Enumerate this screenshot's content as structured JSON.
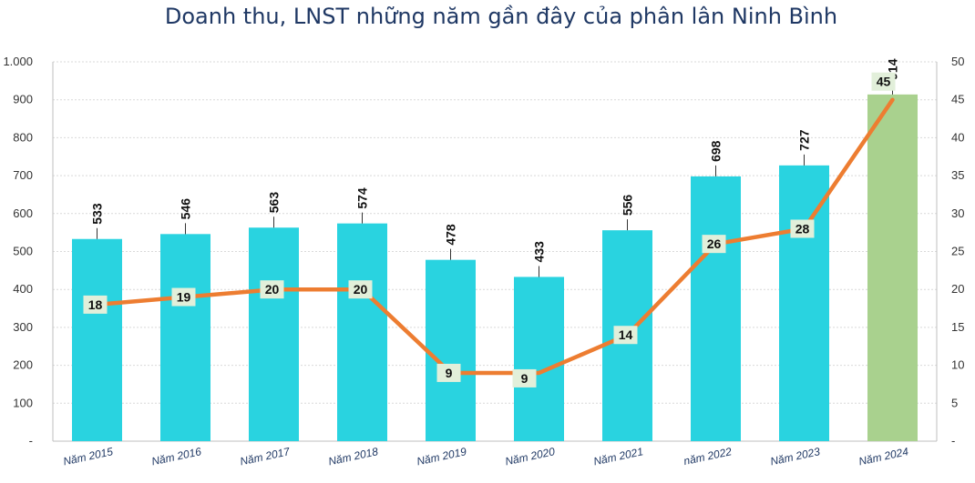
{
  "chart_data": {
    "type": "bar",
    "title": "Doanh thu, LNST những năm gần đây của phân lân Ninh Bình",
    "categories": [
      "Năm 2015",
      "Năm 2016",
      "Năm 2017",
      "Năm 2018",
      "Năm 2019",
      "Năm 2020",
      "Năm 2021",
      "năm 2022",
      "Năm 2023",
      "Năm 2024"
    ],
    "series": [
      {
        "type": "bar",
        "axis": "left",
        "values": [
          533,
          546,
          563,
          574,
          478,
          433,
          556,
          698,
          727,
          914
        ],
        "color": "#29d3e0",
        "highlight_color": "#a9d18e"
      },
      {
        "type": "line",
        "axis": "right",
        "values": [
          18,
          19,
          20,
          20,
          9,
          9,
          14,
          26,
          28,
          45
        ],
        "color": "#ed7d31",
        "label_bg": "#e2efda"
      }
    ],
    "left_axis": {
      "ylim": [
        0,
        1000
      ],
      "ticks": [
        "-",
        "100",
        "200",
        "300",
        "400",
        "500",
        "600",
        "700",
        "800",
        "900",
        "1.000"
      ]
    },
    "right_axis": {
      "ylim": [
        0,
        50
      ],
      "ticks": [
        "-",
        "5",
        "10",
        "15",
        "20",
        "25",
        "30",
        "35",
        "40",
        "45",
        "50"
      ]
    },
    "grid": true,
    "legend": "none"
  }
}
